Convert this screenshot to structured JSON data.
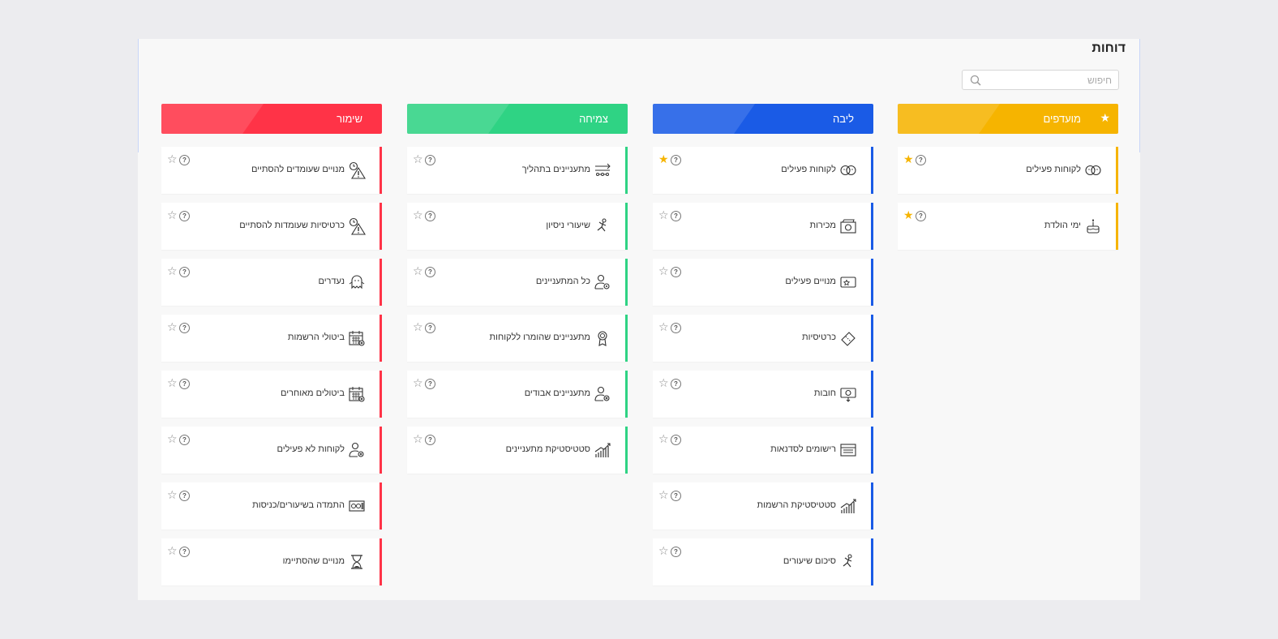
{
  "page": {
    "title": "דוחות",
    "search_placeholder": "חיפוש"
  },
  "colors": {
    "favorites": "#f6b400",
    "core": "#1a5be6",
    "growth": "#2fd384",
    "retention": "#ff3347"
  },
  "columns": {
    "favorites": {
      "label": "מועדפים",
      "icon": "star-icon",
      "items": [
        {
          "label": "לקוחות פעילים",
          "icon": "faces-icon",
          "starred": true
        },
        {
          "label": "ימי הולדת",
          "icon": "cake-icon",
          "starred": true
        }
      ]
    },
    "core": {
      "label": "ליבה",
      "items": [
        {
          "label": "לקוחות פעילים",
          "icon": "faces-icon",
          "starred": true
        },
        {
          "label": "מכירות",
          "icon": "cash-register-icon",
          "starred": false
        },
        {
          "label": "מנויים פעילים",
          "icon": "membership-card-icon",
          "starred": false
        },
        {
          "label": "כרטיסיות",
          "icon": "ticket-icon",
          "starred": false
        },
        {
          "label": "חובות",
          "icon": "debt-icon",
          "starred": false
        },
        {
          "label": "רישומים לסדנאות",
          "icon": "workshop-icon",
          "starred": false
        },
        {
          "label": "סטטיסטיקת הרשמות",
          "icon": "growth-chart-icon",
          "starred": false
        },
        {
          "label": "סיכום שיעורים",
          "icon": "gymnast-icon",
          "starred": false
        }
      ]
    },
    "growth": {
      "label": "צמיחה",
      "items": [
        {
          "label": "מתעניינים בתהליך",
          "icon": "pipeline-icon",
          "starred": false
        },
        {
          "label": "שיעורי ניסיון",
          "icon": "gymnast-icon",
          "starred": false
        },
        {
          "label": "כל המתעניינים",
          "icon": "user-settings-icon",
          "starred": false
        },
        {
          "label": "מתעניינים שהומרו ללקוחות",
          "icon": "award-icon",
          "starred": false
        },
        {
          "label": "מתעניינים אבודים",
          "icon": "user-x-icon",
          "starred": false
        },
        {
          "label": "סטטיסטיקת מתעניינים",
          "icon": "growth-chart-icon",
          "starred": false
        }
      ]
    },
    "retention": {
      "label": "שימור",
      "items": [
        {
          "label": "מנויים שעומדים להסתיים",
          "icon": "clock-warning-icon",
          "starred": false
        },
        {
          "label": "כרטיסיות שעומדות להסתיים",
          "icon": "clock-warning-icon",
          "starred": false
        },
        {
          "label": "נעדרים",
          "icon": "ghost-icon",
          "starred": false
        },
        {
          "label": "ביטולי הרשמות",
          "icon": "calendar-x-icon",
          "starred": false
        },
        {
          "label": "ביטולים מאוחרים",
          "icon": "calendar-x-icon",
          "starred": false
        },
        {
          "label": "לקוחות לא פעילים",
          "icon": "user-x-icon",
          "starred": false
        },
        {
          "label": "התמדה בשיעורים/כניסות",
          "icon": "attendance-icon",
          "starred": false
        },
        {
          "label": "מנויים שהסתיימו",
          "icon": "hourglass-icon",
          "starred": false
        }
      ]
    }
  }
}
